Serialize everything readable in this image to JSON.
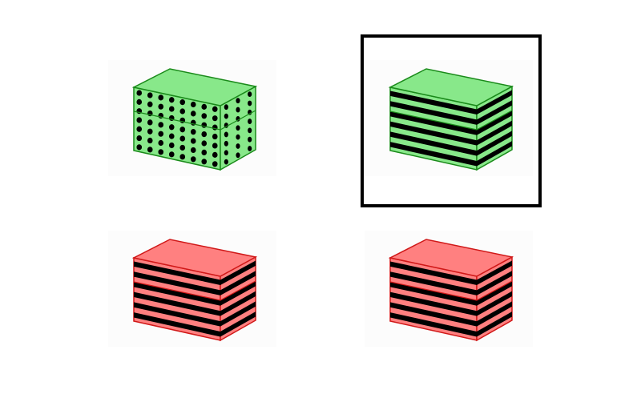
{
  "options": [
    {
      "id": "a",
      "color": "#88e88a",
      "stroke": "#1a8a1a",
      "pattern": "dots",
      "selected": false
    },
    {
      "id": "b",
      "color": "#88e88a",
      "stroke": "#1a8a1a",
      "pattern": "stripes",
      "selected": true
    },
    {
      "id": "c",
      "color": "#ff8080",
      "stroke": "#d01818",
      "pattern": "stripes",
      "selected": false
    },
    {
      "id": "d",
      "color": "#ff8080",
      "stroke": "#d01818",
      "pattern": "stripes",
      "selected": false
    }
  ]
}
